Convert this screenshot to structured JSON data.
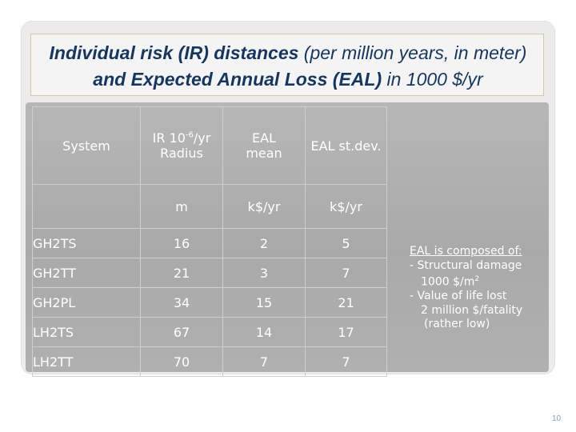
{
  "title": {
    "part1": "Individual risk (IR) distances",
    "part2": "(per million years, in meter)",
    "part3": "and Expected Annual Loss (EAL)",
    "part4": "in 1000 $/yr"
  },
  "table": {
    "headers": {
      "system": "System",
      "ir_pre": "IR 10",
      "ir_exp": "-6",
      "ir_post": "/yr",
      "ir_line2": "Radius",
      "eal_mean_1": "EAL",
      "eal_mean_2": "mean",
      "eal_std": "EAL st.dev."
    },
    "units": {
      "system": "",
      "ir": "m",
      "eal_mean": "k$/yr",
      "eal_std": "k$/yr"
    },
    "rows": [
      {
        "system": "GH2TS",
        "ir": "16",
        "eal_mean": "2",
        "eal_std": "5"
      },
      {
        "system": "GH2TT",
        "ir": "21",
        "eal_mean": "3",
        "eal_std": "7"
      },
      {
        "system": "GH2PL",
        "ir": "34",
        "eal_mean": "15",
        "eal_std": "21"
      },
      {
        "system": "LH2TS",
        "ir": "67",
        "eal_mean": "14",
        "eal_std": "17"
      },
      {
        "system": "LH2TT",
        "ir": "70",
        "eal_mean": "7",
        "eal_std": "7"
      }
    ]
  },
  "note": {
    "head": "EAL is composed of:",
    "l1": "- Structural damage",
    "l2_pre": "1000 $/m",
    "l2_sup": "2",
    "l3": "-  Value of life lost",
    "l4": "2 million $/fatality",
    "l5": "(rather low)"
  },
  "slide_number": "10"
}
